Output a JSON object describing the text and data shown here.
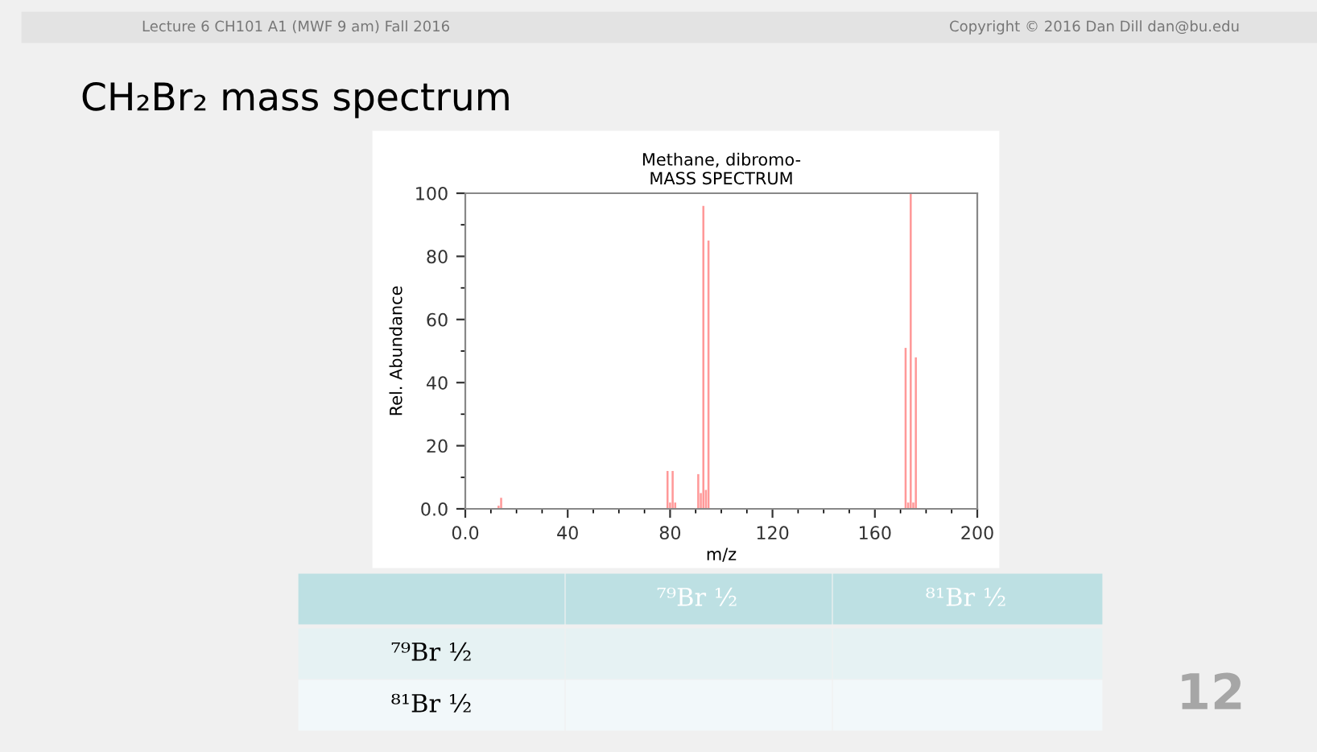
{
  "chart_data": {
    "type": "bar",
    "title": "Methane, dibromo-",
    "subtitle": "MASS SPECTRUM",
    "xlabel": "m/z",
    "ylabel": "Rel. Abundance",
    "x": [
      13,
      14,
      79,
      80,
      81,
      82,
      91,
      92,
      93,
      94,
      95,
      172,
      173,
      174,
      175,
      176
    ],
    "values": [
      1,
      3.5,
      12,
      2,
      12,
      2,
      11,
      5,
      96,
      6,
      85,
      51,
      2,
      100,
      2,
      48
    ],
    "color": "#ff9999",
    "xlim": [
      0,
      200
    ],
    "xticks": [
      {
        "value": 0,
        "label": "0.0"
      },
      40,
      80,
      120,
      160,
      200
    ],
    "ylim": [
      0,
      100
    ],
    "yticks": [
      {
        "value": 0,
        "label": "0.0"
      },
      20,
      40,
      60,
      80,
      100
    ],
    "grid": false,
    "legend": false,
    "annotations": [
      "Lecture 6 CH101 A1 (MWF 9 am) Fall 2016",
      "Copyright © 2016 Dan Dill dan@bu.edu",
      "CH₂Br₂ mass spectrum",
      "⁷⁹Br ½",
      "⁸¹Br ½",
      "⁷⁹Br ½",
      "⁸¹Br ½",
      "12"
    ]
  }
}
